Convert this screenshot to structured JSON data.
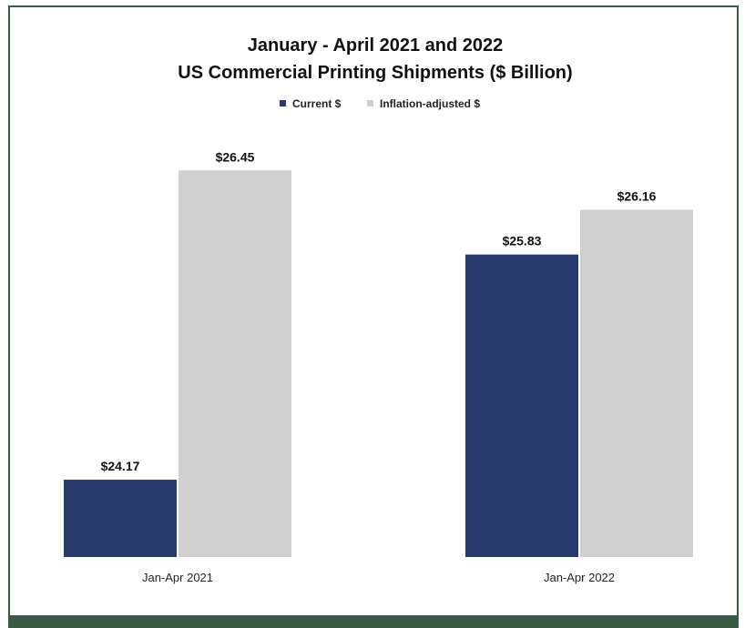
{
  "chart_data": {
    "type": "bar",
    "title": "January - April 2021 and 2022",
    "subtitle": "US Commercial Printing Shipments ($ Billion)",
    "xlabel": "",
    "ylabel": "",
    "categories": [
      "Jan-Apr 2021",
      "Jan-Apr 2022"
    ],
    "series": [
      {
        "name": "Current $",
        "values": [
          24.17,
          25.83
        ],
        "labels": [
          "$24.17",
          "$25.83"
        ],
        "color": "#273a6b"
      },
      {
        "name": "Inflation-adjusted $",
        "values": [
          26.45,
          26.16
        ],
        "labels": [
          "$26.45",
          "$26.16"
        ],
        "color": "#cfcfcf"
      }
    ],
    "ylim": [
      23.6,
      26.7
    ],
    "grid": false,
    "legend_position": "top-center"
  },
  "frame": {
    "border_color": "#3a5a46",
    "footer_color": "#3a5a46"
  }
}
